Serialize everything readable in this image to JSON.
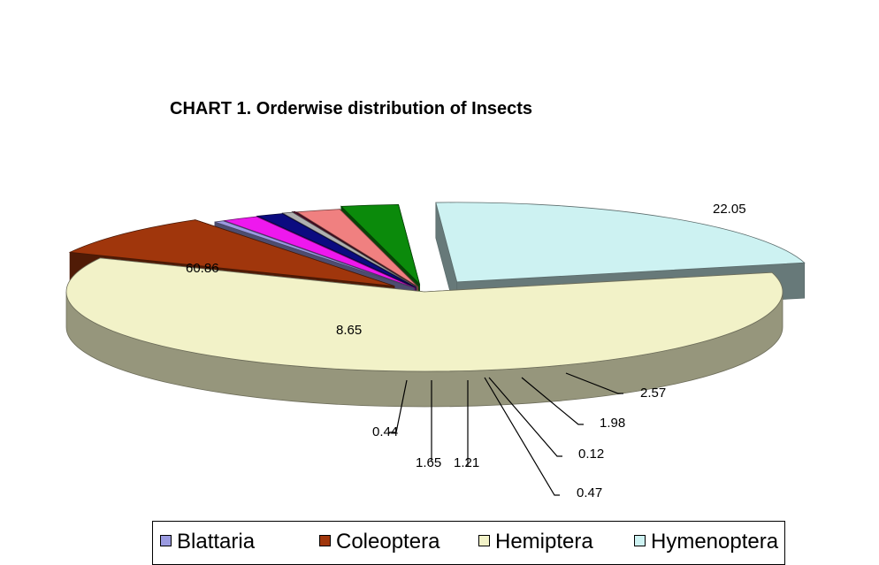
{
  "chart_data": {
    "type": "pie",
    "title": "CHART 1. Orderwise distribution of Insects",
    "slices": [
      {
        "value": 60.86,
        "label": "60.86",
        "color": "#f2f2c8"
      },
      {
        "value": 8.65,
        "label": "8.65",
        "color": "#a0360c"
      },
      {
        "value": 0.44,
        "label": "0.44",
        "color": "#9a9ae0"
      },
      {
        "value": 1.65,
        "label": "1.65",
        "color": "#ee18ee"
      },
      {
        "value": 1.21,
        "label": "1.21",
        "color": "#0b0b80"
      },
      {
        "value": 0.47,
        "label": "0.47",
        "color": "#b0b0b0"
      },
      {
        "value": 0.12,
        "label": "0.12",
        "color": "#600a2e"
      },
      {
        "value": 1.98,
        "label": "1.98",
        "color": "#f08080"
      },
      {
        "value": 2.57,
        "label": "2.57",
        "color": "#0b8a0b"
      },
      {
        "value": 22.05,
        "label": "22.05",
        "color": "#cdf2f2"
      }
    ],
    "legend": {
      "position": "bottom",
      "entries": [
        {
          "name": "Blattaria",
          "color": "#9a9ae0"
        },
        {
          "name": "Coleoptera",
          "color": "#a0360c"
        },
        {
          "name": "Hemiptera",
          "color": "#f2f2c8"
        },
        {
          "name": "Hymenoptera",
          "color": "#cdf2f2"
        }
      ]
    }
  }
}
